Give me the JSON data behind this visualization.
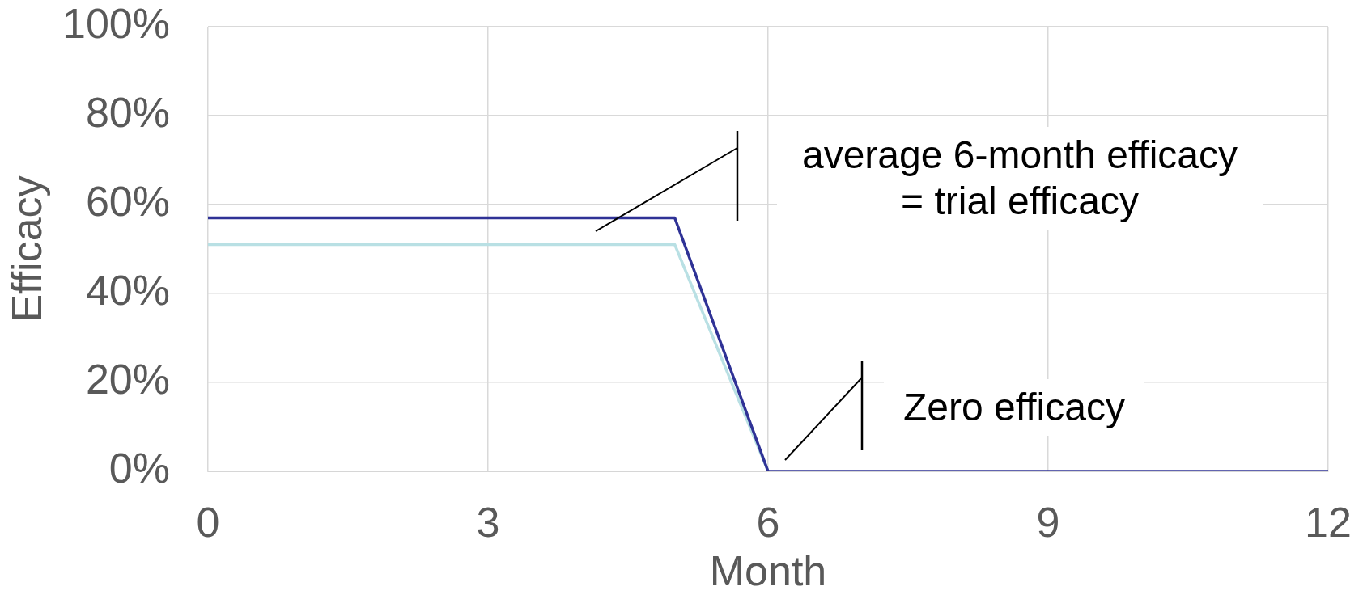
{
  "chart_data": {
    "type": "line",
    "xlabel": "Month",
    "ylabel": "Efficacy",
    "xlim": [
      0,
      12
    ],
    "xticks": [
      0,
      3,
      6,
      9,
      12
    ],
    "ylim": [
      0,
      100
    ],
    "yticks": [
      {
        "value": 0,
        "label": "0%"
      },
      {
        "value": 20,
        "label": "20%"
      },
      {
        "value": 40,
        "label": "40%"
      },
      {
        "value": 60,
        "label": "60%"
      },
      {
        "value": 80,
        "label": "80%"
      },
      {
        "value": 100,
        "label": "100%"
      }
    ],
    "grid": true,
    "series": [
      {
        "color": "#2f3296",
        "x": [
          0,
          5,
          6,
          12
        ],
        "values": [
          57,
          57,
          0,
          0
        ]
      },
      {
        "color": "#b9e0e4",
        "x": [
          0,
          5,
          6
        ],
        "values": [
          51,
          51,
          0
        ]
      }
    ],
    "annotations": [
      "average 6-month efficacy = trial efficacy",
      "Zero efficacy"
    ]
  }
}
